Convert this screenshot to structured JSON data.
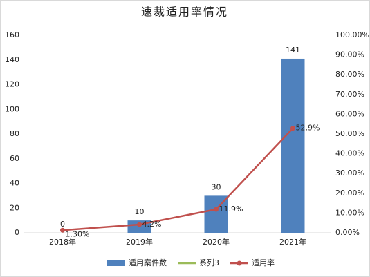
{
  "chart_data": {
    "type": "bar_line",
    "title": "速裁适用率情况",
    "categories": [
      "2018年",
      "2019年",
      "2020年",
      "2021年"
    ],
    "series": [
      {
        "name": "适用案件数",
        "color": "#4f81bd",
        "type": "bar",
        "values": [
          0,
          10,
          30,
          141
        ]
      },
      {
        "name": "系列3",
        "color": "#9bbb59",
        "type": "line",
        "values": [
          null,
          null,
          null,
          null
        ]
      },
      {
        "name": "适用率",
        "color": "#c0504d",
        "type": "line",
        "axis": "y2",
        "values": [
          1.3,
          4.2,
          11.9,
          52.9
        ],
        "value_labels": [
          "1.30%",
          "4.2%",
          "11.9%",
          "52.9%"
        ]
      }
    ],
    "ylim": [
      0,
      160
    ],
    "yticks": [
      0,
      20,
      40,
      60,
      80,
      100,
      120,
      140,
      160
    ],
    "y2lim": [
      0,
      100
    ],
    "y2ticks": [
      {
        "value": 0,
        "label": "0.00%"
      },
      {
        "value": 10,
        "label": "10.00%"
      },
      {
        "value": 20,
        "label": "20.00%"
      },
      {
        "value": 30,
        "label": "30.00%"
      },
      {
        "value": 40,
        "label": "40.00%"
      },
      {
        "value": 50,
        "label": "50.00%"
      },
      {
        "value": 60,
        "label": "60.00%"
      },
      {
        "value": 70,
        "label": "70.00%"
      },
      {
        "value": 80,
        "label": "80.00%"
      },
      {
        "value": 90,
        "label": "90.00%"
      },
      {
        "value": 100,
        "label": "100.00%"
      }
    ],
    "grid": false,
    "legend": "bottom"
  }
}
